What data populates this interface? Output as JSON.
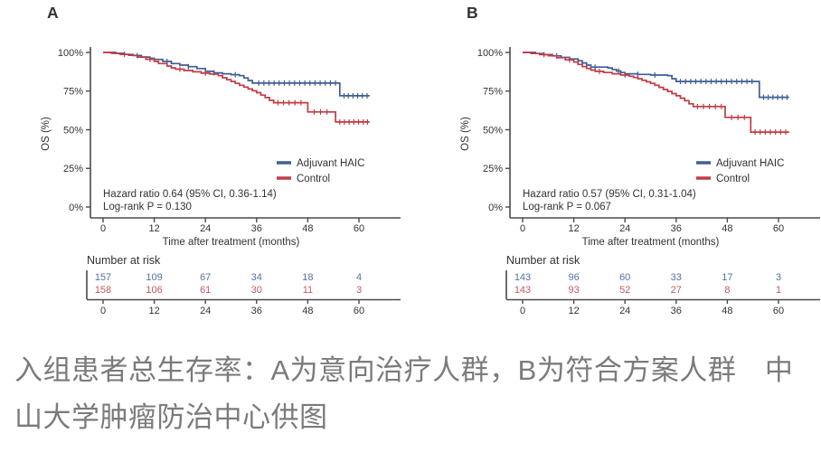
{
  "caption": "入组患者总生存率：A为意向治疗人群，B为符合方案人群　中山大学肿瘤防治中心供图",
  "colors": {
    "adjuvant_haic": "#3f5e94",
    "control": "#c23b43",
    "risk_adjuvant": "#5470a3",
    "risk_control": "#c05a60",
    "axis": "#4a4a4a",
    "text": "#333333",
    "caption_gray": "#7b7b7b"
  },
  "chart_data": [
    {
      "type": "line",
      "subtype": "kaplan-meier-step",
      "panel_label": "A",
      "xlabel": "Time after treatment (months)",
      "ylabel": "OS (%)",
      "xlim": [
        0,
        63
      ],
      "ylim": [
        0,
        100
      ],
      "xticks": [
        0,
        12,
        24,
        36,
        48,
        60
      ],
      "ytick_labels": [
        "0%",
        "25%",
        "50%",
        "75%",
        "100%"
      ],
      "ytick_values": [
        0,
        25,
        50,
        75,
        100
      ],
      "grid": false,
      "legend_position": "inside-right-middle",
      "legend": [
        "Adjuvant HAIC",
        "Control"
      ],
      "annotation": [
        "Hazard ratio 0.64 (95% CI, 0.36-1.14)",
        "Log-rank P = 0.130"
      ],
      "series": [
        {
          "name": "Adjuvant HAIC",
          "color": "#3f5e94",
          "steps": [
            [
              0,
              100
            ],
            [
              3,
              99.4
            ],
            [
              5,
              98.7
            ],
            [
              7,
              98
            ],
            [
              9,
              97
            ],
            [
              11,
              96.2
            ],
            [
              12,
              95.5
            ],
            [
              14,
              94.2
            ],
            [
              16,
              92.8
            ],
            [
              18,
              91.8
            ],
            [
              20,
              90.8
            ],
            [
              22,
              89.6
            ],
            [
              24,
              87.8
            ],
            [
              26,
              86.8
            ],
            [
              28,
              86.2
            ],
            [
              30,
              85.6
            ],
            [
              32,
              85
            ],
            [
              33,
              83.5
            ],
            [
              34,
              81.8
            ],
            [
              35,
              80.2
            ],
            [
              55.5,
              72
            ],
            [
              62.5,
              72
            ]
          ],
          "censor_months": [
            8,
            15,
            20,
            26,
            31,
            36.5,
            37.7,
            38.9,
            40.1,
            41.3,
            42.5,
            43.7,
            44.9,
            46.1,
            47.3,
            48.5,
            49.7,
            50.9,
            52.1,
            53.3,
            54.5,
            56.5,
            57.5,
            58.6,
            59.7,
            60.8,
            61.9
          ]
        },
        {
          "name": "Control",
          "color": "#c23b43",
          "steps": [
            [
              0,
              100
            ],
            [
              2,
              99.4
            ],
            [
              4,
              98.8
            ],
            [
              6,
              98.1
            ],
            [
              8,
              97
            ],
            [
              10,
              95.6
            ],
            [
              12,
              94.2
            ],
            [
              13,
              92.8
            ],
            [
              15,
              91.2
            ],
            [
              16,
              90
            ],
            [
              17,
              89.2
            ],
            [
              19,
              88.3
            ],
            [
              21,
              87.5
            ],
            [
              23,
              86.6
            ],
            [
              25,
              86
            ],
            [
              27,
              85
            ],
            [
              28,
              83.6
            ],
            [
              29,
              82.4
            ],
            [
              30,
              81.2
            ],
            [
              31,
              80
            ],
            [
              32,
              78.8
            ],
            [
              33,
              77.6
            ],
            [
              34,
              76.4
            ],
            [
              35,
              75.2
            ],
            [
              36,
              74
            ],
            [
              37,
              72.4
            ],
            [
              38,
              70.8
            ],
            [
              39,
              69
            ],
            [
              40,
              67.5
            ],
            [
              48,
              61.5
            ],
            [
              54.5,
              55
            ],
            [
              62.5,
              55
            ]
          ],
          "censor_months": [
            5,
            11,
            18,
            24,
            41,
            42.3,
            43.6,
            45,
            46.4,
            49.5,
            51,
            52.5,
            55.5,
            56.6,
            57.7,
            58.8,
            59.9,
            61,
            62
          ]
        }
      ],
      "risk_table": {
        "header": "Number at risk",
        "timepoints": [
          0,
          12,
          24,
          36,
          48,
          60
        ],
        "rows": [
          {
            "name": "Adjuvant HAIC",
            "color": "#5470a3",
            "values": [
              157,
              109,
              67,
              34,
              18,
              4
            ]
          },
          {
            "name": "Control",
            "color": "#c05a60",
            "values": [
              158,
              106,
              61,
              30,
              11,
              3
            ]
          }
        ]
      }
    },
    {
      "type": "line",
      "subtype": "kaplan-meier-step",
      "panel_label": "B",
      "xlabel": "Time after treatment (months)",
      "ylabel": "OS (%)",
      "xlim": [
        0,
        63
      ],
      "ylim": [
        0,
        100
      ],
      "xticks": [
        0,
        12,
        24,
        36,
        48,
        60
      ],
      "ytick_labels": [
        "0%",
        "25%",
        "50%",
        "75%",
        "100%"
      ],
      "ytick_values": [
        0,
        25,
        50,
        75,
        100
      ],
      "grid": false,
      "legend_position": "inside-right-middle",
      "legend": [
        "Adjuvant HAIC",
        "Control"
      ],
      "annotation": [
        "Hazard ratio 0.57 (95% CI, 0.31-1.04)",
        "Log-rank P = 0.067"
      ],
      "series": [
        {
          "name": "Adjuvant HAIC",
          "color": "#3f5e94",
          "steps": [
            [
              0,
              100
            ],
            [
              3,
              99.3
            ],
            [
              5,
              98.6
            ],
            [
              7,
              97.8
            ],
            [
              9,
              96.8
            ],
            [
              11,
              95.8
            ],
            [
              13,
              94.6
            ],
            [
              14,
              93.2
            ],
            [
              15,
              91.8
            ],
            [
              16,
              90.5
            ],
            [
              20,
              90
            ],
            [
              21,
              89
            ],
            [
              22,
              88
            ],
            [
              23,
              87
            ],
            [
              24,
              86.2
            ],
            [
              27,
              85.8
            ],
            [
              30,
              85.4
            ],
            [
              34,
              85
            ],
            [
              35,
              83
            ],
            [
              36,
              81.2
            ],
            [
              55.5,
              71
            ],
            [
              62.5,
              71
            ]
          ],
          "censor_months": [
            8,
            17,
            22.5,
            27,
            31,
            37,
            38.2,
            39.4,
            40.6,
            41.8,
            43,
            44.2,
            45.4,
            46.6,
            47.8,
            49,
            50.2,
            51.4,
            52.6,
            53.8,
            56.5,
            57.6,
            58.7,
            59.8,
            60.9,
            62
          ]
        },
        {
          "name": "Control",
          "color": "#c23b43",
          "steps": [
            [
              0,
              100
            ],
            [
              2,
              99.3
            ],
            [
              4,
              98.6
            ],
            [
              6,
              97.9
            ],
            [
              8,
              96.6
            ],
            [
              10,
              95.2
            ],
            [
              12,
              93.8
            ],
            [
              13,
              92.2
            ],
            [
              14,
              90.8
            ],
            [
              15,
              89.6
            ],
            [
              16,
              88.6
            ],
            [
              17,
              87.8
            ],
            [
              19,
              87
            ],
            [
              21,
              86.2
            ],
            [
              23,
              85.4
            ],
            [
              25,
              84.6
            ],
            [
              26,
              83.8
            ],
            [
              27,
              83
            ],
            [
              28,
              82
            ],
            [
              29,
              81
            ],
            [
              30,
              80
            ],
            [
              31,
              78.8
            ],
            [
              32,
              77.4
            ],
            [
              33,
              76
            ],
            [
              34,
              74.8
            ],
            [
              35,
              73.4
            ],
            [
              36,
              72
            ],
            [
              37,
              70.4
            ],
            [
              38,
              68.8
            ],
            [
              39,
              66.8
            ],
            [
              40,
              65
            ],
            [
              47.5,
              58
            ],
            [
              53.5,
              48.5
            ],
            [
              62.5,
              48.5
            ]
          ],
          "censor_months": [
            5,
            11,
            18,
            24,
            41,
            42.4,
            43.8,
            45.2,
            46.6,
            49,
            50.5,
            52,
            54.5,
            55.7,
            56.9,
            58.1,
            59.3,
            60.5,
            61.7
          ]
        }
      ],
      "risk_table": {
        "header": "Number at risk",
        "timepoints": [
          0,
          12,
          24,
          36,
          48,
          60
        ],
        "rows": [
          {
            "name": "Adjuvant HAIC",
            "color": "#5470a3",
            "values": [
              143,
              96,
              60,
              33,
              17,
              3
            ]
          },
          {
            "name": "Control",
            "color": "#c05a60",
            "values": [
              143,
              93,
              52,
              27,
              8,
              1
            ]
          }
        ]
      }
    }
  ]
}
